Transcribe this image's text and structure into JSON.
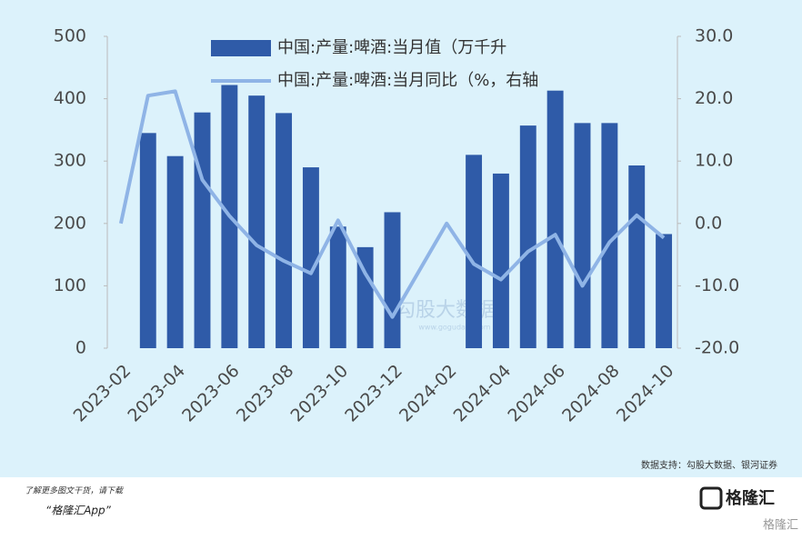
{
  "chart_data": {
    "type": "bar_line",
    "categories": [
      "2023-02",
      null,
      "2023-04",
      null,
      "2023-06",
      null,
      "2023-08",
      null,
      "2023-10",
      null,
      "2023-12",
      null,
      "2024-02",
      null,
      "2024-04",
      null,
      "2024-06",
      null,
      "2024-08",
      null,
      "2024-10"
    ],
    "series": [
      {
        "name": "中国:产量:啤酒:当月值（万千升",
        "type": "bar",
        "color": "#2f5ba8",
        "values": [
          null,
          345,
          308,
          378,
          422,
          405,
          377,
          290,
          195,
          162,
          218,
          null,
          null,
          310,
          280,
          357,
          413,
          361,
          361,
          293,
          183
        ]
      },
      {
        "name": "中国:产量:啤酒:当月同比（%，右轴",
        "type": "line",
        "axis": "y2",
        "color": "#8fb4e6",
        "values": [
          0,
          20.5,
          21.2,
          7,
          1.2,
          -3.5,
          -6,
          -8,
          0.5,
          -8,
          -15,
          -7.5,
          0,
          -6.5,
          -9,
          -4.5,
          -1.8,
          -10,
          -3,
          1.3,
          -2.3
        ]
      }
    ],
    "ylim": [
      0,
      500
    ],
    "yticks": [
      0,
      100,
      200,
      300,
      400,
      500
    ],
    "y2lim": [
      -20,
      30
    ],
    "y2ticks": [
      {
        "value": -20,
        "label": "-20.0"
      },
      {
        "value": -10,
        "label": "-10.0"
      },
      {
        "value": 0,
        "label": "0.0"
      },
      {
        "value": 10,
        "label": "10.0"
      },
      {
        "value": 20,
        "label": "20.0"
      },
      {
        "value": 30,
        "label": "30.0"
      }
    ],
    "source": "数据支持：勾股大数据、银河证券",
    "watermark": "勾股大数据",
    "watermark_url": "www.gogudata.com"
  },
  "footer": {
    "line1": "了解更多图文干货，请下载",
    "line2": "“格隆汇App”",
    "logo": "格隆汇"
  }
}
